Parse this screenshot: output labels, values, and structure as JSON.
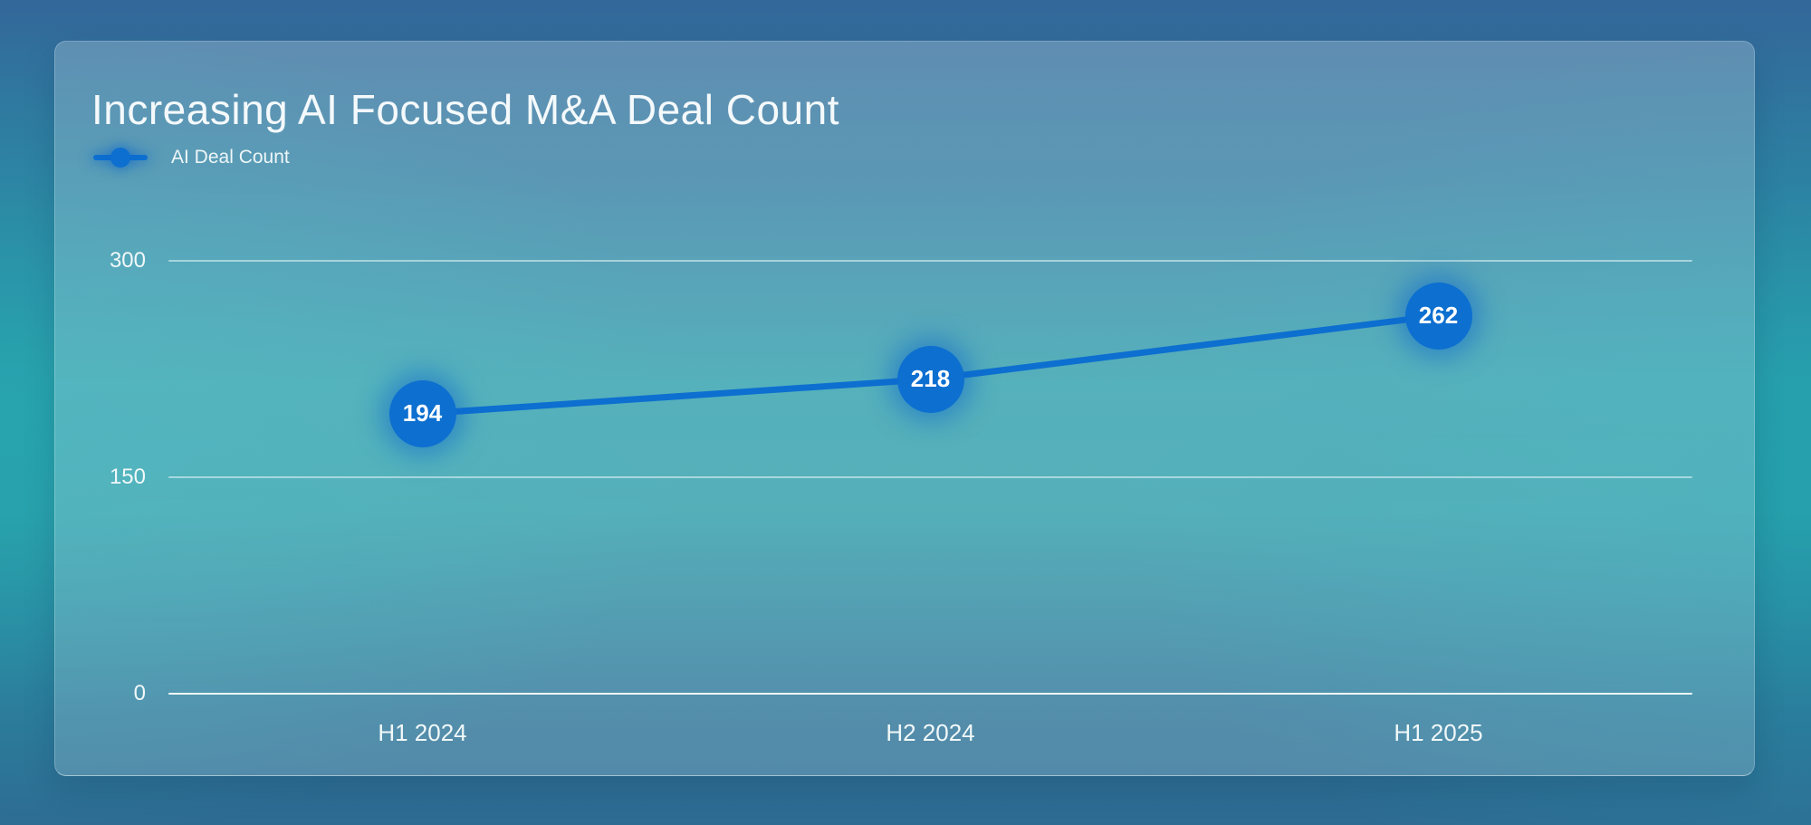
{
  "card": {
    "title": "Increasing AI Focused M&A Deal Count"
  },
  "legend": {
    "label": "AI Deal Count"
  },
  "chart_data": {
    "type": "line",
    "title": "Increasing AI Focused M&A Deal Count",
    "categories": [
      "H1 2024",
      "H2 2024",
      "H1 2025"
    ],
    "series": [
      {
        "name": "AI Deal Count",
        "values": [
          194,
          218,
          262
        ]
      }
    ],
    "ylim": [
      0,
      300
    ],
    "yticks": [
      0,
      150,
      300
    ],
    "grid": true,
    "legend_position": "top-left",
    "point_labels_visible": true
  },
  "colors": {
    "accent_blue": "#0d6fd0",
    "point_glow": "rgba(13,102,205,0.5)",
    "grid_line": "rgba(235,248,250,0.55)",
    "axis_baseline": "rgba(255,255,255,0.95)",
    "text_light": "#f2f7f9"
  }
}
